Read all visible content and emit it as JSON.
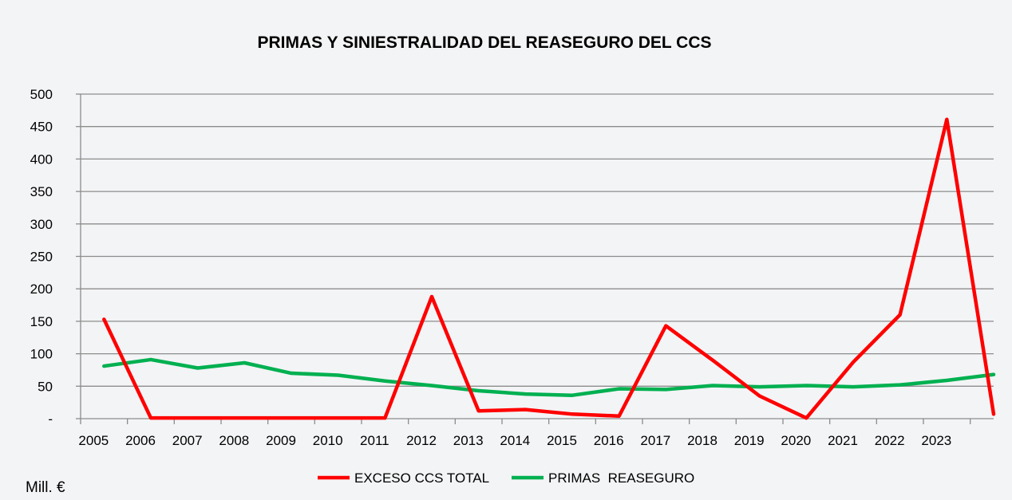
{
  "chart_data": {
    "type": "line",
    "title": "PRIMAS Y SINIESTRALIDAD DEL REASEGURO DEL CCS",
    "unit_label": "Mill. €",
    "categories": [
      "2005",
      "2006",
      "2007",
      "2008",
      "2009",
      "2010",
      "2011",
      "2012",
      "2013",
      "2014",
      "2015",
      "2016",
      "2017",
      "2018",
      "2019",
      "2020",
      "2021",
      "2022",
      "2023",
      ""
    ],
    "y_ticks": [
      0,
      50,
      100,
      150,
      200,
      250,
      300,
      350,
      400,
      450,
      500
    ],
    "y_tick_labels": [
      "-",
      "50",
      "100",
      "150",
      "200",
      "250",
      "300",
      "350",
      "400",
      "450",
      "500"
    ],
    "ylim": [
      0,
      500
    ],
    "grid": true,
    "legend_position": "bottom",
    "series": [
      {
        "name": "EXCESO CCS TOTAL",
        "color": "#ff0000",
        "values": [
          153,
          1,
          1,
          1,
          1,
          1,
          1,
          188,
          12,
          14,
          7,
          4,
          143,
          90,
          35,
          1,
          87,
          160,
          461,
          7
        ]
      },
      {
        "name": "PRIMAS  REASEGURO",
        "color": "#00b050",
        "values": [
          81,
          91,
          78,
          86,
          70,
          67,
          58,
          51,
          43,
          38,
          36,
          46,
          45,
          51,
          49,
          51,
          49,
          52,
          59,
          68
        ]
      }
    ]
  }
}
